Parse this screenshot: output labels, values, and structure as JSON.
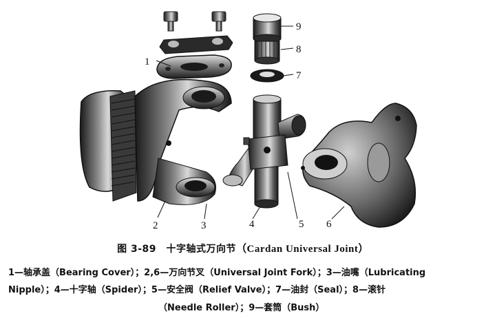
{
  "figure": {
    "callouts": [
      "1",
      "2",
      "3",
      "4",
      "5",
      "6",
      "7",
      "8",
      "9"
    ]
  },
  "caption": {
    "title_prefix": "图 3-89　十字轴式万向节",
    "title_latin": "（Cardan Universal Joint）",
    "legend_line_1": "1—轴承盖（Bearing Cover）；2,6—万向节叉（Universal Joint Fork）；3—油嘴（Lubricating",
    "legend_line_2": "Nipple）；4—十字轴（Spider）；5—安全阀（Relief Valve）；7—油封（Seal）；8—滚针",
    "legend_line_3": "（Needle Roller）；9—套筒（Bush）"
  }
}
